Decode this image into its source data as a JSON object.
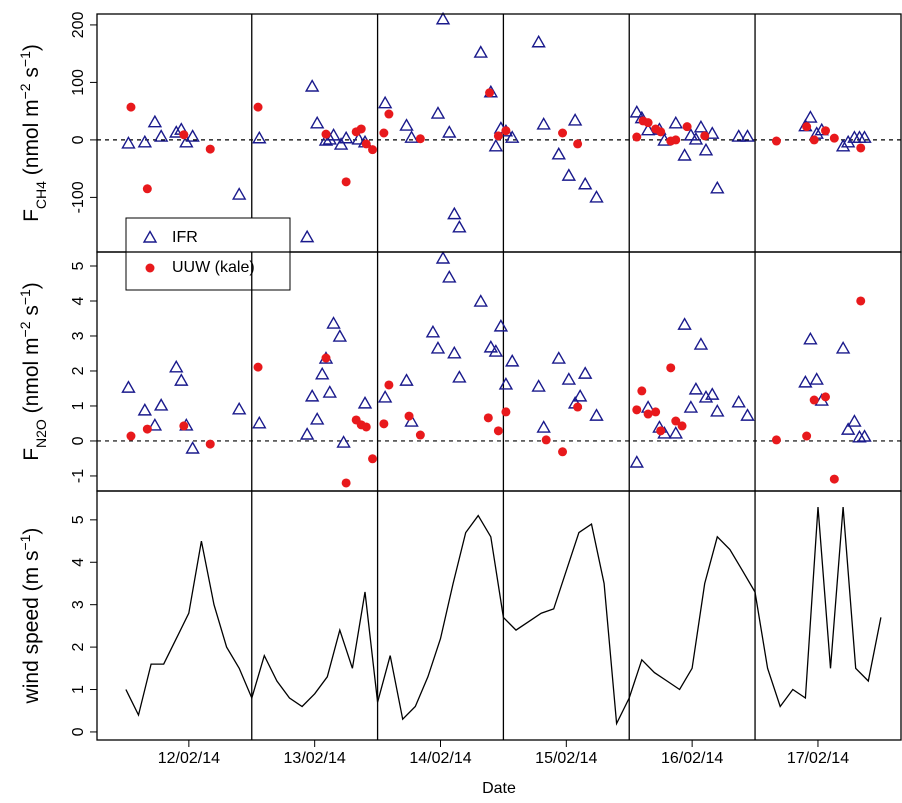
{
  "chart_data": [
    {
      "type": "scatter",
      "ylabel": [
        {
          "text": "F"
        },
        {
          "text": "CH4",
          "shift": "sub"
        },
        {
          "text": " (nmol m"
        },
        {
          "text": "−2",
          "shift": "super"
        },
        {
          "text": " s"
        },
        {
          "text": "−1",
          "shift": "super"
        },
        {
          "text": ")"
        }
      ],
      "xlim": [
        -0.23,
        6.16
      ],
      "ylim": [
        -195,
        219
      ],
      "yticks": [
        -100,
        0,
        100,
        200
      ],
      "reference_line": 0,
      "day_lines": [
        1,
        2,
        3,
        4,
        5
      ],
      "legend": "bottom-left",
      "series": [
        {
          "name": "IFR",
          "color": "#1a1a8c",
          "marker": "triangle",
          "x": [
            0.02,
            0.15,
            0.23,
            0.28,
            0.4,
            0.44,
            0.48,
            0.53,
            0.9,
            1.06,
            1.44,
            1.48,
            1.52,
            1.59,
            1.62,
            1.65,
            1.71,
            1.75,
            1.85,
            1.9,
            2.06,
            2.23,
            2.27,
            2.48,
            2.52,
            2.57,
            2.61,
            2.65,
            2.82,
            2.9,
            2.94,
            2.98,
            3.02,
            3.07,
            3.28,
            3.32,
            3.44,
            3.52,
            3.57,
            3.65,
            3.74,
            4.06,
            4.1,
            4.15,
            4.24,
            4.28,
            4.37,
            4.44,
            4.49,
            4.53,
            4.57,
            4.61,
            4.66,
            4.7,
            4.87,
            4.94,
            5.4,
            5.44,
            5.49,
            5.53,
            5.7,
            5.74,
            5.79,
            5.83,
            5.87
          ],
          "values": [
            -7,
            -5,
            30,
            5,
            12,
            17,
            -5,
            5,
            -96,
            2,
            -170,
            92,
            28,
            -2,
            0,
            7,
            -9,
            2,
            0,
            -5,
            63,
            24,
            3,
            45,
            209,
            12,
            -130,
            -153,
            151,
            82,
            -12,
            19,
            14,
            3,
            169,
            26,
            -26,
            -63,
            33,
            -78,
            -101,
            47,
            37,
            16,
            17,
            -2,
            28,
            -28,
            7,
            0,
            21,
            -19,
            10,
            -85,
            5,
            5,
            23,
            38,
            10,
            16,
            -12,
            -5,
            3,
            3,
            3
          ]
        },
        {
          "name": "UUW (kale)",
          "color": "#e8191c",
          "marker": "circle",
          "x": [
            0.04,
            0.17,
            0.46,
            0.67,
            1.05,
            1.59,
            1.75,
            1.83,
            1.87,
            1.91,
            1.96,
            2.05,
            2.09,
            2.34,
            2.89,
            2.96,
            3.02,
            3.47,
            3.59,
            4.06,
            4.11,
            4.15,
            4.21,
            4.25,
            4.33,
            4.37,
            4.46,
            4.6,
            5.17,
            5.41,
            5.47,
            5.56,
            5.63,
            5.84
          ],
          "values": [
            57,
            -85,
            9,
            -16,
            57,
            10,
            -73,
            14,
            19,
            -7,
            -17,
            12,
            45,
            2,
            82,
            7,
            16,
            12,
            -7,
            5,
            33,
            30,
            19,
            14,
            -2,
            0,
            23,
            7,
            -2,
            23,
            0,
            16,
            3,
            -14
          ]
        }
      ]
    },
    {
      "type": "scatter",
      "ylabel": [
        {
          "text": "F"
        },
        {
          "text": "N2O",
          "shift": "sub"
        },
        {
          "text": " (nmol m"
        },
        {
          "text": "−2",
          "shift": "super"
        },
        {
          "text": " s"
        },
        {
          "text": "−1",
          "shift": "super"
        },
        {
          "text": ")"
        }
      ],
      "xlim": [
        -0.23,
        6.16
      ],
      "ylim": [
        -1.43,
        5.4
      ],
      "yticks": [
        -1,
        0,
        1,
        2,
        3,
        4,
        5
      ],
      "reference_line": 0,
      "day_lines": [
        1,
        2,
        3,
        4,
        5
      ],
      "series": [
        {
          "color": "#1a1a8c",
          "marker": "triangle",
          "x": [
            0.02,
            0.15,
            0.23,
            0.28,
            0.4,
            0.44,
            0.48,
            0.53,
            0.9,
            1.06,
            1.44,
            1.48,
            1.52,
            1.56,
            1.59,
            1.62,
            1.65,
            1.7,
            1.73,
            1.9,
            2.06,
            2.23,
            2.27,
            2.44,
            2.48,
            2.52,
            2.57,
            2.61,
            2.65,
            2.82,
            2.9,
            2.94,
            2.98,
            3.02,
            3.07,
            3.28,
            3.32,
            3.44,
            3.52,
            3.57,
            3.61,
            3.65,
            3.74,
            4.06,
            4.15,
            4.24,
            4.28,
            4.37,
            4.44,
            4.49,
            4.53,
            4.57,
            4.61,
            4.66,
            4.7,
            4.87,
            4.94,
            5.4,
            5.44,
            5.49,
            5.53,
            5.7,
            5.74,
            5.79,
            5.83,
            5.87
          ],
          "values": [
            1.51,
            0.86,
            0.43,
            1.0,
            2.09,
            1.71,
            0.43,
            -0.23,
            0.89,
            0.49,
            0.17,
            1.26,
            0.6,
            1.89,
            2.34,
            1.37,
            3.34,
            2.97,
            -0.06,
            1.06,
            1.23,
            1.71,
            0.54,
            3.09,
            2.63,
            5.2,
            4.66,
            2.49,
            1.8,
            3.97,
            2.66,
            2.54,
            3.26,
            1.6,
            2.26,
            1.54,
            0.37,
            2.34,
            1.74,
            1.06,
            1.26,
            1.91,
            0.71,
            -0.63,
            0.94,
            0.37,
            0.2,
            0.2,
            3.31,
            0.94,
            1.46,
            2.74,
            1.23,
            1.31,
            0.83,
            1.09,
            0.71,
            1.66,
            2.89,
            1.74,
            1.14,
            2.63,
            0.31,
            0.54,
            0.09,
            0.11
          ]
        },
        {
          "color": "#e8191c",
          "marker": "circle",
          "x": [
            0.04,
            0.17,
            0.46,
            0.67,
            1.05,
            1.59,
            1.75,
            1.83,
            1.87,
            1.91,
            1.96,
            2.05,
            2.09,
            2.25,
            2.34,
            2.88,
            2.96,
            3.02,
            3.34,
            3.47,
            3.59,
            4.06,
            4.1,
            4.15,
            4.21,
            4.25,
            4.33,
            4.37,
            4.42,
            5.17,
            5.41,
            5.47,
            5.56,
            5.63,
            5.84
          ],
          "values": [
            0.14,
            0.34,
            0.43,
            -0.09,
            2.11,
            2.37,
            -1.2,
            0.6,
            0.46,
            0.4,
            -0.51,
            0.49,
            1.6,
            0.71,
            0.17,
            0.66,
            0.29,
            0.83,
            0.03,
            -0.31,
            0.97,
            0.89,
            1.43,
            0.77,
            0.83,
            0.29,
            2.09,
            0.57,
            0.43,
            0.03,
            0.14,
            1.17,
            1.26,
            -1.09,
            4.0
          ]
        }
      ]
    },
    {
      "type": "line",
      "ylabel": [
        {
          "text": "wind speed (m s"
        },
        {
          "text": "−1",
          "shift": "super"
        },
        {
          "text": ")"
        }
      ],
      "xlabel": "Date",
      "xlim": [
        -0.23,
        6.16
      ],
      "ylim": [
        -0.19,
        5.68
      ],
      "yticks": [
        0,
        1,
        2,
        3,
        4,
        5
      ],
      "xticks": [
        {
          "value": 0.5,
          "label": "12/02/14"
        },
        {
          "value": 1.5,
          "label": "13/02/14"
        },
        {
          "value": 2.5,
          "label": "14/02/14"
        },
        {
          "value": 3.5,
          "label": "15/02/14"
        },
        {
          "value": 4.5,
          "label": "16/02/14"
        },
        {
          "value": 5.5,
          "label": "17/02/14"
        }
      ],
      "day_lines": [
        1,
        2,
        3,
        4,
        5
      ],
      "series": [
        {
          "color": "#000000",
          "x": [
            0.0,
            0.1,
            0.2,
            0.3,
            0.4,
            0.5,
            0.6,
            0.7,
            0.8,
            0.9,
            1.0,
            1.1,
            1.2,
            1.3,
            1.4,
            1.5,
            1.6,
            1.7,
            1.8,
            1.9,
            2.0,
            2.1,
            2.2,
            2.3,
            2.4,
            2.5,
            2.6,
            2.7,
            2.8,
            2.9,
            3.0,
            3.1,
            3.2,
            3.3,
            3.4,
            3.5,
            3.6,
            3.7,
            3.8,
            3.9,
            4.0,
            4.1,
            4.2,
            4.3,
            4.4,
            4.5,
            4.6,
            4.7,
            4.8,
            4.9,
            5.0,
            5.1,
            5.2,
            5.3,
            5.4,
            5.5,
            5.6,
            5.7,
            5.8,
            5.9,
            6.0
          ],
          "values": [
            1.0,
            0.4,
            1.6,
            1.6,
            2.2,
            2.8,
            4.5,
            3.0,
            2.0,
            1.5,
            0.8,
            1.8,
            1.2,
            0.8,
            0.6,
            0.9,
            1.3,
            2.4,
            1.5,
            3.3,
            0.7,
            1.8,
            0.3,
            0.6,
            1.3,
            2.2,
            3.5,
            4.7,
            5.1,
            4.6,
            2.7,
            2.4,
            2.6,
            2.8,
            2.9,
            3.8,
            4.7,
            4.9,
            3.5,
            0.2,
            0.8,
            1.7,
            1.4,
            1.2,
            1.0,
            1.5,
            3.5,
            4.6,
            4.3,
            3.8,
            3.3,
            1.5,
            0.6,
            1.0,
            0.8,
            5.3,
            1.5,
            5.3,
            1.5,
            1.2,
            2.7
          ]
        }
      ]
    }
  ]
}
